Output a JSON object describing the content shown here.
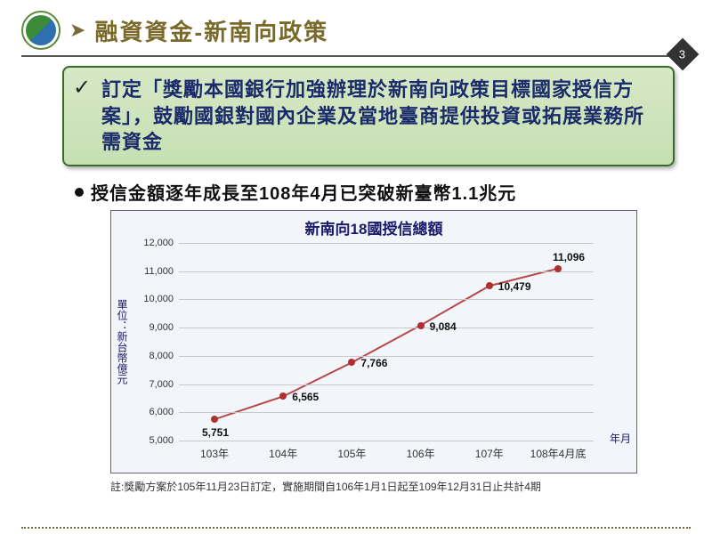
{
  "slide": {
    "title": "融資資金-新南向政策",
    "page_number": "3"
  },
  "callout": {
    "text": "訂定「獎勵本國銀行加強辦理於新南向政策目標國家授信方案」，鼓勵國銀對國內企業及當地臺商提供投資或拓展業務所需資金"
  },
  "bullet": {
    "text": "授信金額逐年成長至108年4月已突破新臺幣1.1兆元"
  },
  "chart": {
    "type": "line",
    "title": "新南向18國授信總額",
    "ylabel": "單位：新台幣億元",
    "xlabel_axis": "年月",
    "background_color": "#f2f6fa",
    "grid_color": "#c8c8c8",
    "line_color": "#b84848",
    "marker_color": "#b03030",
    "line_width": 2,
    "ylim": [
      5000,
      12000
    ],
    "ytick_step": 1000,
    "yticks": [
      "5,000",
      "6,000",
      "7,000",
      "8,000",
      "9,000",
      "10,000",
      "11,000",
      "12,000"
    ],
    "categories": [
      "103年",
      "104年",
      "105年",
      "106年",
      "107年",
      "108年4月底"
    ],
    "values": [
      5751,
      6565,
      7766,
      9084,
      10479,
      11096
    ],
    "value_labels": [
      "5,751",
      "6,565",
      "7,766",
      "9,084",
      "10,479",
      "11,096"
    ],
    "title_fontsize": 17,
    "tick_fontsize": 11
  },
  "footnote": {
    "text": "註:獎勵方案於105年11月23日訂定，實施期間自106年1月1日起至109年12月31日止共計4期"
  },
  "colors": {
    "title_color": "#7a6a2a",
    "callout_text_color": "#1a2a6a",
    "callout_bg_top": "#d6e8c6",
    "callout_bg_bottom": "#c6e0b2",
    "callout_border": "#3a6a2a"
  }
}
